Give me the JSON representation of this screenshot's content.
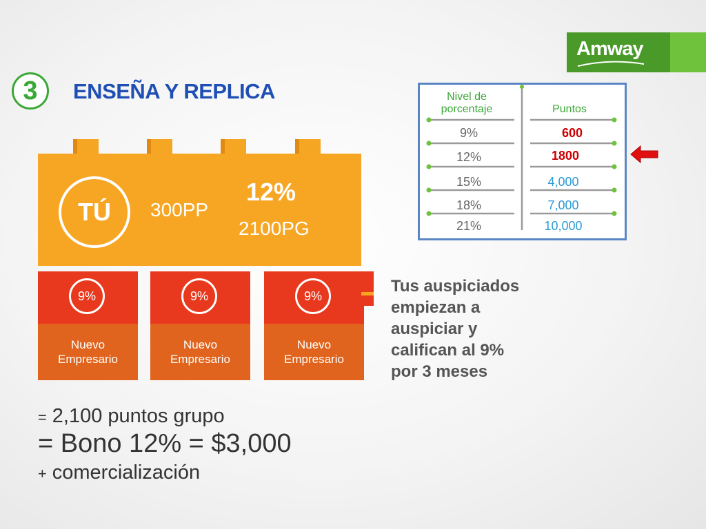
{
  "logo": {
    "text": "Amway"
  },
  "title": {
    "step": "3",
    "text": "ENSEÑA Y REPLICA"
  },
  "main_brick": {
    "you": "TÚ",
    "personal_points": "300PP",
    "percent": "12%",
    "group_points": "2100PG"
  },
  "small_bricks": [
    {
      "percent": "9%",
      "label_line1": "Nuevo",
      "label_line2": "Empresario"
    },
    {
      "percent": "9%",
      "label_line1": "Nuevo",
      "label_line2": "Empresario"
    },
    {
      "percent": "9%",
      "label_line1": "Nuevo",
      "label_line2": "Empresario"
    }
  ],
  "info_text": [
    "Tus auspiciados",
    "empiezan a",
    "auspiciar y",
    "califican al 9%",
    "por 3 meses"
  ],
  "summary": {
    "line1_sym": "=",
    "line1": " 2,100 puntos grupo",
    "line2": "= Bono 12% = $3,000",
    "line3_sym": "+",
    "line3": " comercialización"
  },
  "table": {
    "header_level_line1": "Nivel de",
    "header_level_line2": "porcentaje",
    "header_points": "Puntos",
    "rows": [
      {
        "level": "9%",
        "points": "600",
        "color": "#cc0000",
        "bold": true
      },
      {
        "level": "12%",
        "points": "1800",
        "color": "#cc0000",
        "bold": true
      },
      {
        "level": "15%",
        "points": "4,000",
        "color": "#2a9ad6",
        "bold": false
      },
      {
        "level": "18%",
        "points": "7,000",
        "color": "#2a9ad6",
        "bold": false
      },
      {
        "level": "21%",
        "points": "10,000",
        "color": "#2a9ad6",
        "bold": false
      }
    ]
  },
  "colors": {
    "title_blue": "#1f4fb5",
    "accent_green": "#3aa835",
    "brick_orange": "#f6a623",
    "brick_red": "#e8391e",
    "brick_dark_orange": "#e0641d",
    "arrow_red": "#e01010"
  }
}
